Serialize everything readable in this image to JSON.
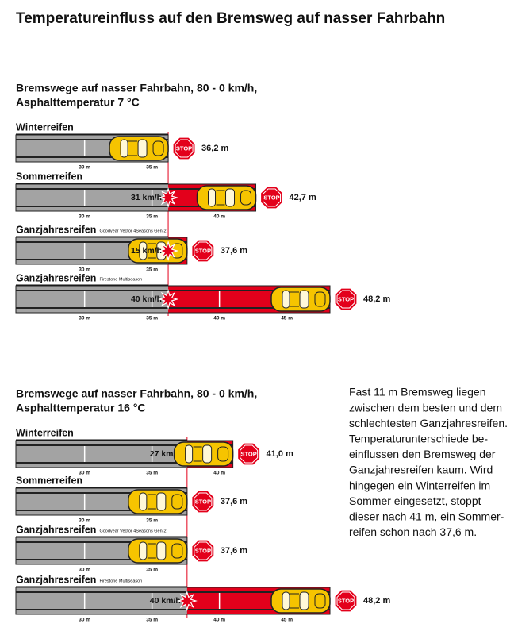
{
  "title": "Temperatureinfluss auf den Bremsweg auf nasser Fahrbahn",
  "stop_label": "STOP",
  "chart_data": [
    {
      "type": "bar",
      "orientation": "horizontal",
      "title": "Bremswege auf nasser Fahrbahn, 80 - 0 km/h,",
      "subtitle": "Asphalttemperatur 7 °C",
      "categories": [
        "Winterreifen",
        "Sommerreifen",
        "Ganzjahresreifen",
        "Ganzjahresreifen"
      ],
      "models": [
        null,
        null,
        "Goodyear Vector 4Seasons Gen-2",
        "Firestone Multiseason"
      ],
      "values": [
        36.2,
        42.7,
        37.6,
        48.2
      ],
      "value_labels": [
        "36,2 m",
        "42,7 m",
        "37,6 m",
        "48,2 m"
      ],
      "speed_labels": [
        null,
        "31 km/h",
        "15 km/h",
        "40 km/h"
      ],
      "color": "#a3a3a3",
      "excess_color": "#e3001b",
      "xlim": [
        24.9,
        48.2
      ],
      "xticks": [
        {
          "value": 30,
          "label": "30 m"
        },
        {
          "value": 35,
          "label": "35 m"
        },
        {
          "value": 40,
          "label": "40 m"
        },
        {
          "value": 45,
          "label": "45 m"
        }
      ]
    },
    {
      "type": "bar",
      "orientation": "horizontal",
      "title": "Bremswege auf nasser Fahrbahn, 80 - 0 km/h,",
      "subtitle": "Asphalttemperatur 16 °C",
      "categories": [
        "Winterreifen",
        "Sommerreifen",
        "Ganzjahresreifen",
        "Ganzjahresreifen"
      ],
      "models": [
        null,
        null,
        "Goodyear Vector 4Seasons Gen-2",
        "Firestone Multiseason"
      ],
      "values": [
        41.0,
        37.6,
        37.6,
        48.2
      ],
      "value_labels": [
        "41,0 m",
        "37,6 m",
        "37,6 m",
        "48,2 m"
      ],
      "speed_labels": [
        "27 km/h",
        null,
        null,
        "40 km/h"
      ],
      "color": "#a3a3a3",
      "excess_color": "#e3001b",
      "xlim": [
        24.9,
        48.2
      ],
      "xticks": [
        {
          "value": 30,
          "label": "30 m"
        },
        {
          "value": 35,
          "label": "35 m"
        },
        {
          "value": 40,
          "label": "40 m"
        },
        {
          "value": 45,
          "label": "45 m"
        }
      ]
    }
  ],
  "note": [
    "Fast 11 m Bremsweg liegen",
    "zwischen dem besten und dem",
    "schlechtesten Ganzjahresreifen.",
    "Temperaturunterschiede be-",
    "einflussen den Bremsweg der",
    "Ganzjahresreifen kaum. Wird",
    "hingegen ein Winterreifen im",
    "Sommer eingesetzt, stoppt",
    "dieser nach 41 m, ein Sommer-",
    "reifen schon nach 37,6 m."
  ]
}
